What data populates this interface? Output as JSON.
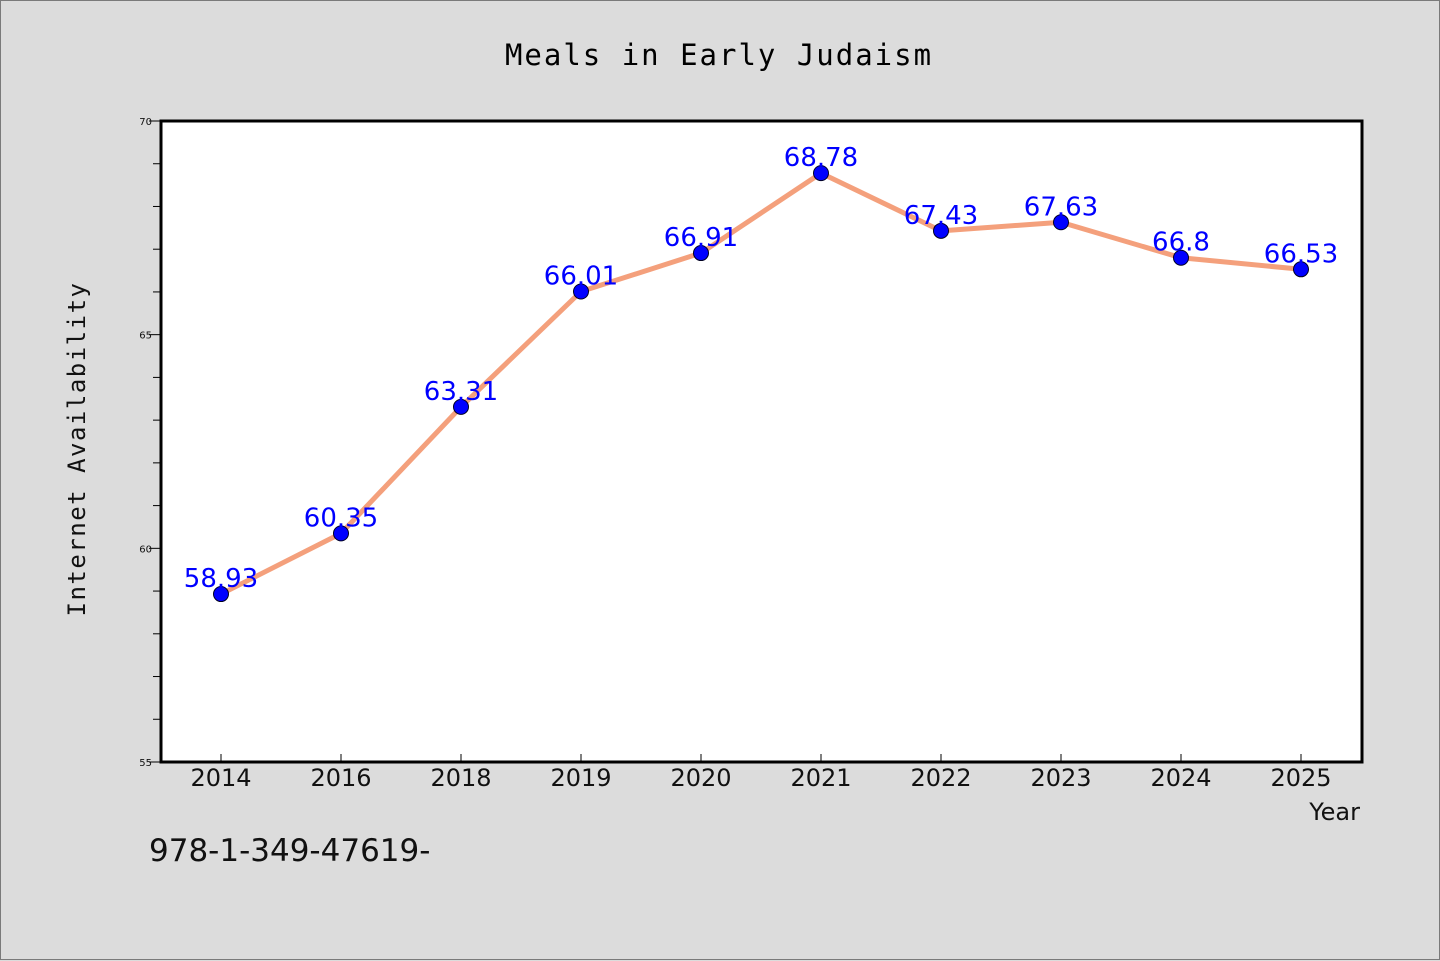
{
  "chart_data": {
    "type": "line",
    "title": "Meals in Early Judaism",
    "xlabel": "Year",
    "ylabel": "Internet Availability",
    "categories": [
      "2014",
      "2016",
      "2018",
      "2019",
      "2020",
      "2021",
      "2022",
      "2023",
      "2024",
      "2025"
    ],
    "series": [
      {
        "values": [
          58.93,
          60.35,
          63.31,
          66.01,
          66.91,
          68.78,
          67.43,
          67.63,
          66.8,
          66.53
        ],
        "labels": [
          "58.93",
          "60.35",
          "63.31",
          "66.01",
          "66.91",
          "68.78",
          "67.43",
          "67.63",
          "66.8",
          "66.53"
        ],
        "line_color": "#f4a07c",
        "marker_color": "#0000ff"
      }
    ],
    "ylim": [
      55,
      70
    ],
    "yticks": [
      55,
      60,
      65,
      70
    ],
    "y_minor_step": 1,
    "grid": false,
    "legend": "none",
    "label_color": "#0000ff"
  },
  "footnote": "978-1-349-47619-",
  "colors": {
    "background": "#dcdcdc",
    "plot_background": "#ffffff",
    "line": "#f4a07c",
    "marker": "#0000ff",
    "data_label": "#0000ff"
  }
}
